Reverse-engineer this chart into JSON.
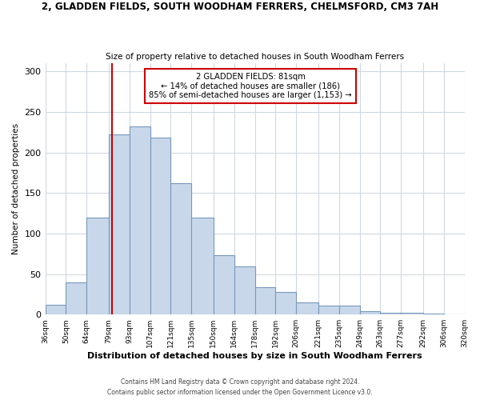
{
  "title1": "2, GLADDEN FIELDS, SOUTH WOODHAM FERRERS, CHELMSFORD, CM3 7AH",
  "title2": "Size of property relative to detached houses in South Woodham Ferrers",
  "xlabel": "Distribution of detached houses by size in South Woodham Ferrers",
  "ylabel": "Number of detached properties",
  "bin_labels": [
    "36sqm",
    "50sqm",
    "64sqm",
    "79sqm",
    "93sqm",
    "107sqm",
    "121sqm",
    "135sqm",
    "150sqm",
    "164sqm",
    "178sqm",
    "192sqm",
    "206sqm",
    "221sqm",
    "235sqm",
    "249sqm",
    "263sqm",
    "277sqm",
    "292sqm",
    "306sqm",
    "320sqm"
  ],
  "bar_values": [
    12,
    40,
    120,
    222,
    232,
    218,
    162,
    120,
    73,
    59,
    34,
    28,
    15,
    11,
    11,
    4,
    2,
    2,
    1,
    0
  ],
  "bar_left_edges": [
    36,
    50,
    64,
    79,
    93,
    107,
    121,
    135,
    150,
    164,
    178,
    192,
    206,
    221,
    235,
    249,
    263,
    277,
    292,
    306
  ],
  "bar_widths": [
    14,
    14,
    15,
    14,
    14,
    14,
    14,
    15,
    14,
    14,
    14,
    14,
    15,
    14,
    14,
    14,
    14,
    15,
    14,
    14
  ],
  "bar_color": "#c8d8ea",
  "bar_edge_color": "#7799bb",
  "vline_x": 81,
  "vline_color": "#cc0000",
  "annotation_title": "2 GLADDEN FIELDS: 81sqm",
  "annotation_line1": "← 14% of detached houses are smaller (186)",
  "annotation_line2": "85% of semi-detached houses are larger (1,153) →",
  "annotation_box_color": "#ffffff",
  "annotation_box_edge": "#cc0000",
  "ylim": [
    0,
    310
  ],
  "yticks": [
    0,
    50,
    100,
    150,
    200,
    250,
    300
  ],
  "footer1": "Contains HM Land Registry data © Crown copyright and database right 2024.",
  "footer2": "Contains public sector information licensed under the Open Government Licence v3.0.",
  "bg_color": "#ffffff",
  "grid_color": "#d0d8e0"
}
